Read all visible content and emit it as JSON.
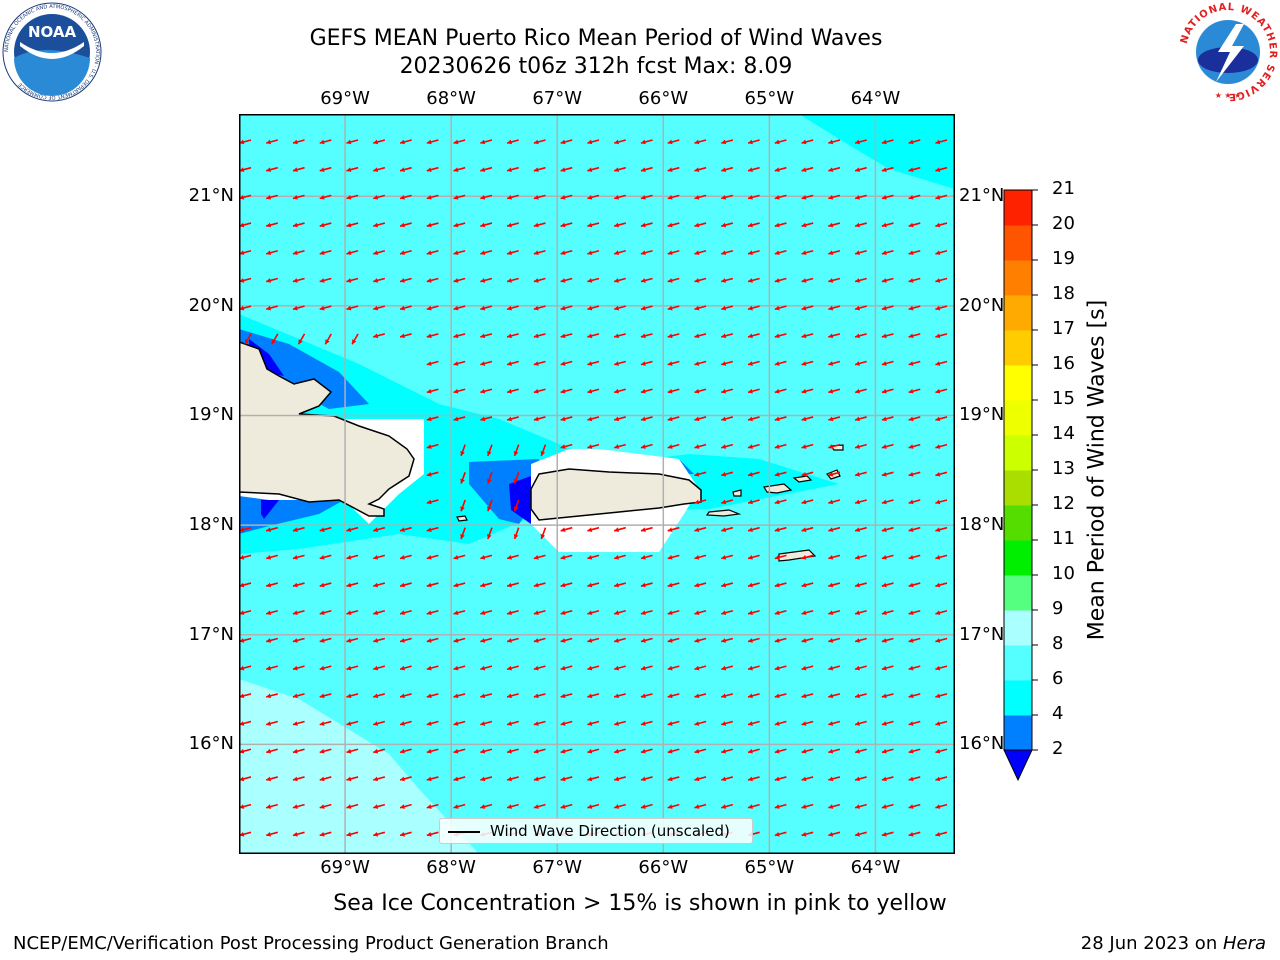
{
  "title_line1": "GEFS MEAN Puerto Rico Mean Period of Wind Waves",
  "title_line2": "20230626 t06z 312h fcst   Max: 8.09",
  "logos": {
    "noaa": {
      "text": "NOAA",
      "ring_text": "NATIONAL OCEANIC AND ATMOSPHERIC ADMINISTRATION · U.S. DEPARTMENT OF COMMERCE"
    },
    "nws": {
      "ring_text": "NATIONAL WEATHER SERVICE"
    }
  },
  "map": {
    "lon_labels": [
      "69°W",
      "68°W",
      "67°W",
      "66°W",
      "65°W",
      "64°W"
    ],
    "lat_labels": [
      "21°N",
      "20°N",
      "19°N",
      "18°N",
      "17°N",
      "16°N"
    ],
    "lon_values": [
      -69,
      -68,
      -67,
      -66,
      -65,
      -64
    ],
    "lat_values": [
      21,
      20,
      19,
      18,
      17,
      16
    ],
    "lon_range": [
      -70,
      -63.25
    ],
    "lat_range": [
      15,
      21.75
    ],
    "ocean_color": "#00ffff",
    "land_color": "#efebdc",
    "arrow_color": "#ff0000",
    "grid_color": "#b0b0b0"
  },
  "colorbar": {
    "title": "Mean Period of Wind Waves [s]",
    "ticks": [
      "2",
      "4",
      "6",
      "8",
      "9",
      "10",
      "11",
      "12",
      "13",
      "14",
      "15",
      "16",
      "17",
      "18",
      "19",
      "20",
      "21"
    ],
    "colors": [
      "#0080ff",
      "#00ffff",
      "#55ffff",
      "#aaffff",
      "#55ff80",
      "#00ee00",
      "#55dd00",
      "#aadd00",
      "#ccff00",
      "#eeff00",
      "#ffff00",
      "#ffcc00",
      "#ffaa00",
      "#ff8000",
      "#ff5500",
      "#ff2200"
    ],
    "under_color": "#0000ff"
  },
  "legend_label": "Wind Wave Direction (unscaled)",
  "footnote": "Sea Ice Concentration > 15% is shown in pink to yellow",
  "credit": "NCEP/EMC/Verification Post Processing Product Generation Branch",
  "date_prefix": "28 Jun 2023 on ",
  "machine": "Hera"
}
